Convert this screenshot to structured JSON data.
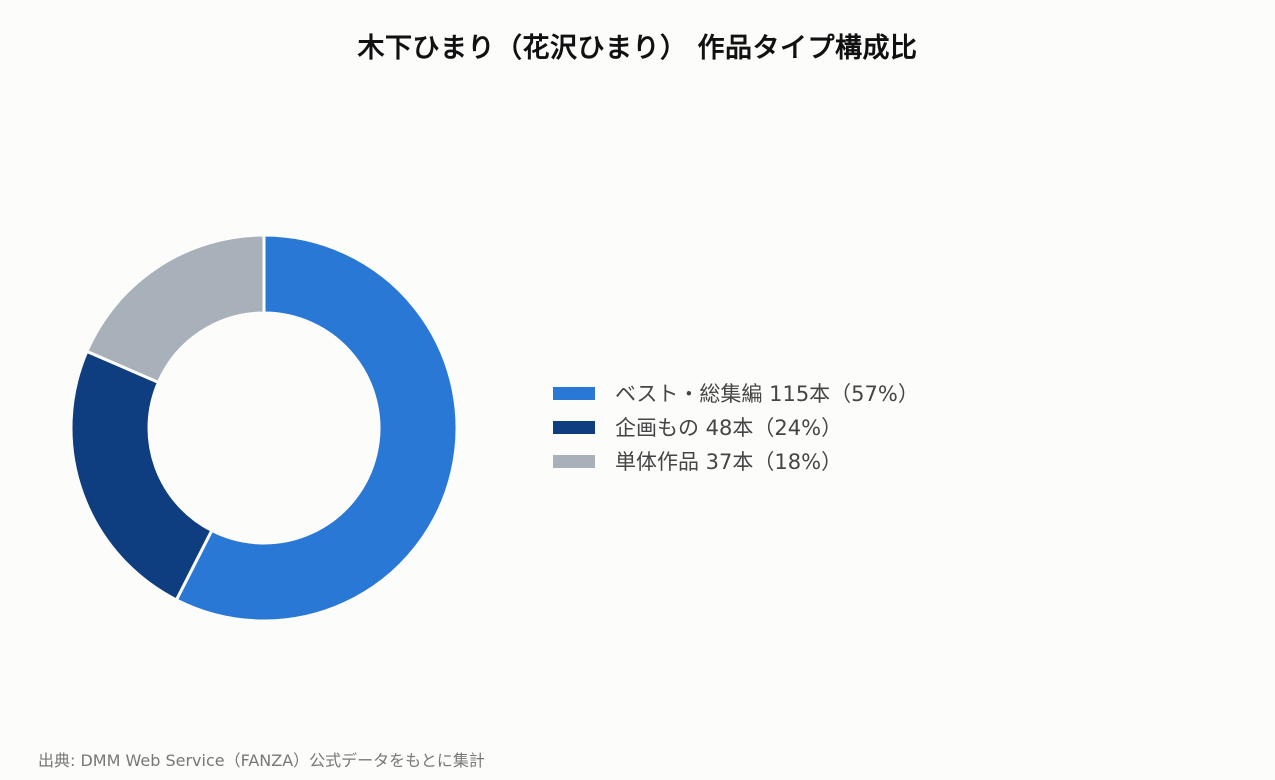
{
  "chart_data": {
    "type": "pie",
    "title": "木下ひまり（花沢ひまり） 作品タイプ構成比",
    "unit": "本",
    "hole": "donut",
    "categories": [
      "ベスト・総集編",
      "企画もの",
      "単体作品"
    ],
    "values": [
      115,
      48,
      37
    ],
    "percentages": [
      57,
      24,
      18
    ],
    "colors": [
      "#2a78d6",
      "#0f3e80",
      "#a8b0ba"
    ],
    "legend": {
      "position": "right",
      "labels": [
        "ベスト・総集編 115本（57%）",
        "企画もの 48本（24%）",
        "単体作品 37本（18%）"
      ]
    }
  },
  "source_note": "出典: DMM Web Service（FANZA）公式データをもとに集計"
}
